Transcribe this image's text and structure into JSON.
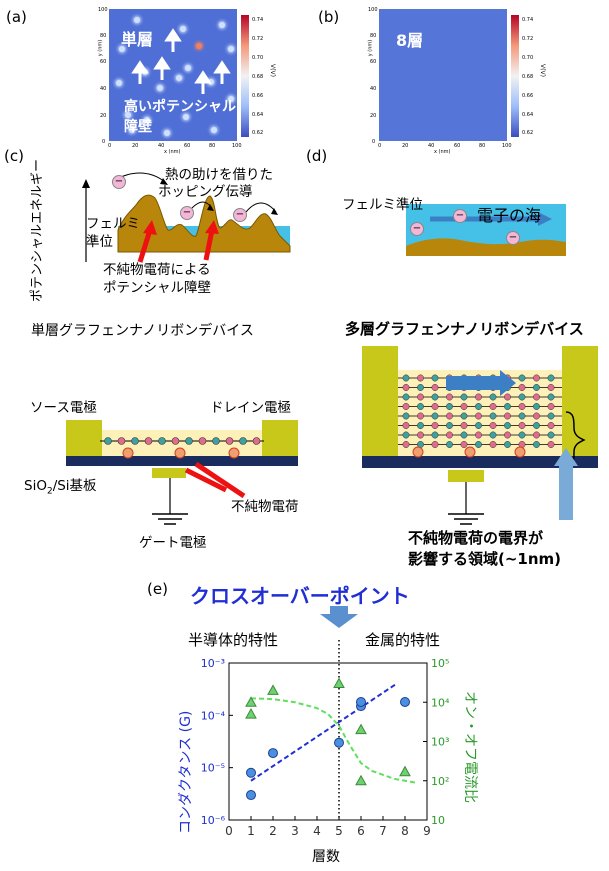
{
  "panels": {
    "a": "(a)",
    "b": "(b)",
    "c": "(c)",
    "d": "(d)",
    "e": "(e)"
  },
  "map_a": {
    "overlay_label": "単層",
    "barrier_label_line1": "高いポテンシャル",
    "barrier_label_line2": "障壁",
    "x_axis": "x (nm)",
    "y_axis": "y (nm)",
    "v_axis": "V(V)",
    "ticks": [
      "0",
      "20",
      "40",
      "60",
      "80",
      "100"
    ],
    "cbar_ticks": [
      "0.74",
      "0.72",
      "0.70",
      "0.68",
      "0.66",
      "0.64",
      "0.62"
    ],
    "spots": [
      [
        22,
        92
      ],
      [
        58,
        85
      ],
      [
        88,
        88
      ],
      [
        10,
        70
      ],
      [
        70,
        72
      ],
      [
        28,
        52
      ],
      [
        40,
        40
      ],
      [
        55,
        48
      ],
      [
        62,
        55
      ],
      [
        80,
        45
      ],
      [
        95,
        32
      ],
      [
        15,
        20
      ],
      [
        30,
        16
      ],
      [
        60,
        18
      ],
      [
        18,
        8
      ],
      [
        45,
        6
      ],
      [
        82,
        8
      ],
      [
        8,
        44
      ],
      [
        95,
        70
      ]
    ],
    "colors": {
      "bg": "#4f6fd6",
      "spot": "#cfe0ff",
      "hot": "#f08060"
    }
  },
  "map_b": {
    "overlay_label": "8層",
    "x_axis": "x (nm)",
    "y_axis": "y (nm)",
    "v_axis": "V(V)",
    "ticks": [
      "0",
      "20",
      "40",
      "60",
      "80",
      "100"
    ],
    "cbar_ticks": [
      "0.74",
      "0.72",
      "0.70",
      "0.68",
      "0.66",
      "0.64",
      "0.62"
    ]
  },
  "panel_c": {
    "y_axis": "ポテンシャルエネルギー",
    "hop_line1": "熱の助けを借りた",
    "hop_line2": "ホッピング伝導",
    "fermi_line1": "フェルミ",
    "fermi_line2": "準位",
    "impurity_line1": "不純物電荷による",
    "impurity_line2": "ポテンシャル障壁",
    "electron": "−"
  },
  "panel_d": {
    "fermi": "フェルミ準位",
    "sea": "電子の海",
    "electron": "−"
  },
  "device_single": {
    "title": "単層グラフェンナノリボンデバイス",
    "source": "ソース電極",
    "drain": "ドレイン電極",
    "substrate": "SiO",
    "substrate_sub": "2",
    "substrate_rest": "/Si基板",
    "impurity": "不純物電荷",
    "gate": "ゲート電極"
  },
  "device_multi": {
    "title": "多層グラフェンナノリボンデバイス",
    "field_line1": "不純物電荷の電界が",
    "field_line2": "影響する領域(~1nm)"
  },
  "crossover": {
    "title": "クロスオーバーポイント",
    "semi": "半導体的特性",
    "metal": "金属的特性"
  },
  "chart_data": {
    "type": "scatter",
    "xlabel": "層数",
    "ylabel": "コンダクタンス (G)",
    "y2label": "オン・オフ電流比",
    "xlim": [
      0,
      9
    ],
    "xticks": [
      "0",
      "1",
      "2",
      "3",
      "4",
      "5",
      "6",
      "7",
      "8",
      "9"
    ],
    "ylim_log10": [
      -6,
      -3
    ],
    "yticks": [
      "10⁻³",
      "10⁻⁴",
      "10⁻⁵",
      "10⁻⁶"
    ],
    "y2lim_log10": [
      1,
      5
    ],
    "y2ticks": [
      "10⁵",
      "10⁴",
      "10³",
      "10²",
      "10"
    ],
    "crossover_x": 5,
    "series": [
      {
        "name": "",
        "axis": "left",
        "marker": "circle",
        "color": "#4a90e2",
        "x": [
          1,
          1,
          2,
          5,
          6,
          6,
          8
        ],
        "y": [
          8e-06,
          3e-06,
          1.9e-05,
          3e-05,
          0.00015,
          0.00018,
          0.00018
        ]
      },
      {
        "name": "",
        "axis": "right",
        "marker": "triangle",
        "color": "#6fd06f",
        "x": [
          1,
          1,
          2,
          5,
          6,
          6,
          8
        ],
        "y": [
          10000,
          5000,
          20000,
          30000,
          2000,
          100,
          170
        ]
      }
    ],
    "fit_left": {
      "x": [
        1,
        7.6
      ],
      "y_log10": [
        -5.25,
        -3.4
      ],
      "color": "#1f2fd4"
    },
    "fit_right": {
      "x": [
        1,
        2,
        3,
        4,
        4.5,
        5,
        5.5,
        6,
        6.5,
        7,
        7.5,
        8,
        8.5
      ],
      "y_log10": [
        4.1,
        4.08,
        4.0,
        3.85,
        3.7,
        3.4,
        2.9,
        2.45,
        2.25,
        2.15,
        2.05,
        2.0,
        1.95
      ],
      "color": "#5fe05f"
    }
  }
}
